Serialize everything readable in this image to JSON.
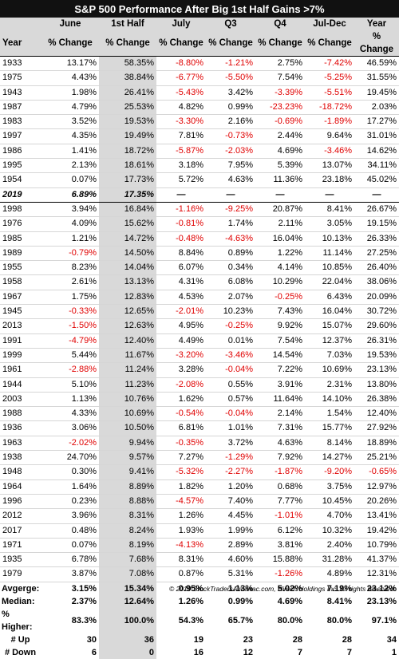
{
  "title": "S&P 500 Performance After Big 1st Half Gains >7%",
  "headers": {
    "row1": [
      "",
      "June",
      "1st Half",
      "July",
      "Q3",
      "Q4",
      "Jul-Dec",
      "Year"
    ],
    "row2": [
      "Year",
      "% Change",
      "% Change",
      "% Change",
      "% Change",
      "% Change",
      "% Change",
      "% Change"
    ]
  },
  "top_rows": [
    [
      "1933",
      "13.17%",
      "58.35%",
      "-8.80%",
      "-1.21%",
      "2.75%",
      "-7.42%",
      "46.59%"
    ],
    [
      "1975",
      "4.43%",
      "38.84%",
      "-6.77%",
      "-5.50%",
      "7.54%",
      "-5.25%",
      "31.55%"
    ],
    [
      "1943",
      "1.98%",
      "26.41%",
      "-5.43%",
      "3.42%",
      "-3.39%",
      "-5.51%",
      "19.45%"
    ],
    [
      "1987",
      "4.79%",
      "25.53%",
      "4.82%",
      "0.99%",
      "-23.23%",
      "-18.72%",
      "2.03%"
    ],
    [
      "1983",
      "3.52%",
      "19.53%",
      "-3.30%",
      "2.16%",
      "-0.69%",
      "-1.89%",
      "17.27%"
    ],
    [
      "1997",
      "4.35%",
      "19.49%",
      "7.81%",
      "-0.73%",
      "2.44%",
      "9.64%",
      "31.01%"
    ],
    [
      "1986",
      "1.41%",
      "18.72%",
      "-5.87%",
      "-2.03%",
      "4.69%",
      "-3.46%",
      "14.62%"
    ],
    [
      "1995",
      "2.13%",
      "18.61%",
      "3.18%",
      "7.95%",
      "5.39%",
      "13.07%",
      "34.11%"
    ],
    [
      "1954",
      "0.07%",
      "17.73%",
      "5.72%",
      "4.63%",
      "11.36%",
      "23.18%",
      "45.02%"
    ]
  ],
  "current_row": [
    "2019",
    "6.89%",
    "17.35%",
    "—",
    "—",
    "—",
    "—",
    "—"
  ],
  "rows": [
    [
      "1998",
      "3.94%",
      "16.84%",
      "-1.16%",
      "-9.25%",
      "20.87%",
      "8.41%",
      "26.67%"
    ],
    [
      "1976",
      "4.09%",
      "15.62%",
      "-0.81%",
      "1.74%",
      "2.11%",
      "3.05%",
      "19.15%"
    ],
    [
      "1985",
      "1.21%",
      "14.72%",
      "-0.48%",
      "-4.63%",
      "16.04%",
      "10.13%",
      "26.33%"
    ],
    [
      "1989",
      "-0.79%",
      "14.50%",
      "8.84%",
      "0.89%",
      "1.22%",
      "11.14%",
      "27.25%"
    ],
    [
      "1955",
      "8.23%",
      "14.04%",
      "6.07%",
      "0.34%",
      "4.14%",
      "10.85%",
      "26.40%"
    ],
    [
      "1958",
      "2.61%",
      "13.13%",
      "4.31%",
      "6.08%",
      "10.29%",
      "22.04%",
      "38.06%"
    ],
    [
      "1967",
      "1.75%",
      "12.83%",
      "4.53%",
      "2.07%",
      "-0.25%",
      "6.43%",
      "20.09%"
    ],
    [
      "1945",
      "-0.33%",
      "12.65%",
      "-2.01%",
      "10.23%",
      "7.43%",
      "16.04%",
      "30.72%"
    ],
    [
      "2013",
      "-1.50%",
      "12.63%",
      "4.95%",
      "-0.25%",
      "9.92%",
      "15.07%",
      "29.60%"
    ],
    [
      "1991",
      "-4.79%",
      "12.40%",
      "4.49%",
      "0.01%",
      "7.54%",
      "12.37%",
      "26.31%"
    ],
    [
      "1999",
      "5.44%",
      "11.67%",
      "-3.20%",
      "-3.46%",
      "14.54%",
      "7.03%",
      "19.53%"
    ],
    [
      "1961",
      "-2.88%",
      "11.24%",
      "3.28%",
      "-0.04%",
      "7.22%",
      "10.69%",
      "23.13%"
    ],
    [
      "1944",
      "5.10%",
      "11.23%",
      "-2.08%",
      "0.55%",
      "3.91%",
      "2.31%",
      "13.80%"
    ],
    [
      "2003",
      "1.13%",
      "10.76%",
      "1.62%",
      "0.57%",
      "11.64%",
      "14.10%",
      "26.38%"
    ],
    [
      "1988",
      "4.33%",
      "10.69%",
      "-0.54%",
      "-0.04%",
      "2.14%",
      "1.54%",
      "12.40%"
    ],
    [
      "1936",
      "3.06%",
      "10.50%",
      "6.81%",
      "1.01%",
      "7.31%",
      "15.77%",
      "27.92%"
    ],
    [
      "1963",
      "-2.02%",
      "9.94%",
      "-0.35%",
      "3.72%",
      "4.63%",
      "8.14%",
      "18.89%"
    ],
    [
      "1938",
      "24.70%",
      "9.57%",
      "7.27%",
      "-1.29%",
      "7.92%",
      "14.27%",
      "25.21%"
    ],
    [
      "1948",
      "0.30%",
      "9.41%",
      "-5.32%",
      "-2.27%",
      "-1.87%",
      "-9.20%",
      "-0.65%"
    ],
    [
      "1964",
      "1.64%",
      "8.89%",
      "1.82%",
      "1.20%",
      "0.68%",
      "3.75%",
      "12.97%"
    ],
    [
      "1996",
      "0.23%",
      "8.88%",
      "-4.57%",
      "7.40%",
      "7.77%",
      "10.45%",
      "20.26%"
    ],
    [
      "2012",
      "3.96%",
      "8.31%",
      "1.26%",
      "4.45%",
      "-1.01%",
      "4.70%",
      "13.41%"
    ],
    [
      "2017",
      "0.48%",
      "8.24%",
      "1.93%",
      "1.99%",
      "6.12%",
      "10.32%",
      "19.42%"
    ],
    [
      "1971",
      "0.07%",
      "8.19%",
      "-4.13%",
      "2.89%",
      "3.81%",
      "2.40%",
      "10.79%"
    ],
    [
      "1935",
      "6.78%",
      "7.68%",
      "8.31%",
      "4.60%",
      "15.88%",
      "31.28%",
      "41.37%"
    ],
    [
      "1979",
      "3.87%",
      "7.08%",
      "0.87%",
      "5.31%",
      "-1.26%",
      "4.89%",
      "12.31%"
    ]
  ],
  "summary": [
    {
      "label": "Avgerge:",
      "values": [
        "3.15%",
        "15.34%",
        "0.95%",
        "1.13%",
        "5.02%",
        "7.19%",
        "23.12%"
      ]
    },
    {
      "label": "Median:",
      "values": [
        "2.37%",
        "12.64%",
        "1.26%",
        "0.99%",
        "4.69%",
        "8.41%",
        "23.13%"
      ]
    },
    {
      "label": "% Higher:",
      "values": [
        "83.3%",
        "100.0%",
        "54.3%",
        "65.7%",
        "80.0%",
        "80.0%",
        "97.1%"
      ]
    },
    {
      "label": "# Up",
      "values": [
        "30",
        "36",
        "19",
        "23",
        "28",
        "28",
        "34"
      ]
    },
    {
      "label": "# Down",
      "values": [
        "6",
        "0",
        "16",
        "12",
        "7",
        "7",
        "1"
      ]
    }
  ],
  "footer": "© 2019 StockTradersAlmanac.com, Hirsch Holdings Inc. All rights reserved.",
  "colors": {
    "negative": "#e00000",
    "highlight": "#d9d9d9",
    "title_bg": "#111111"
  }
}
